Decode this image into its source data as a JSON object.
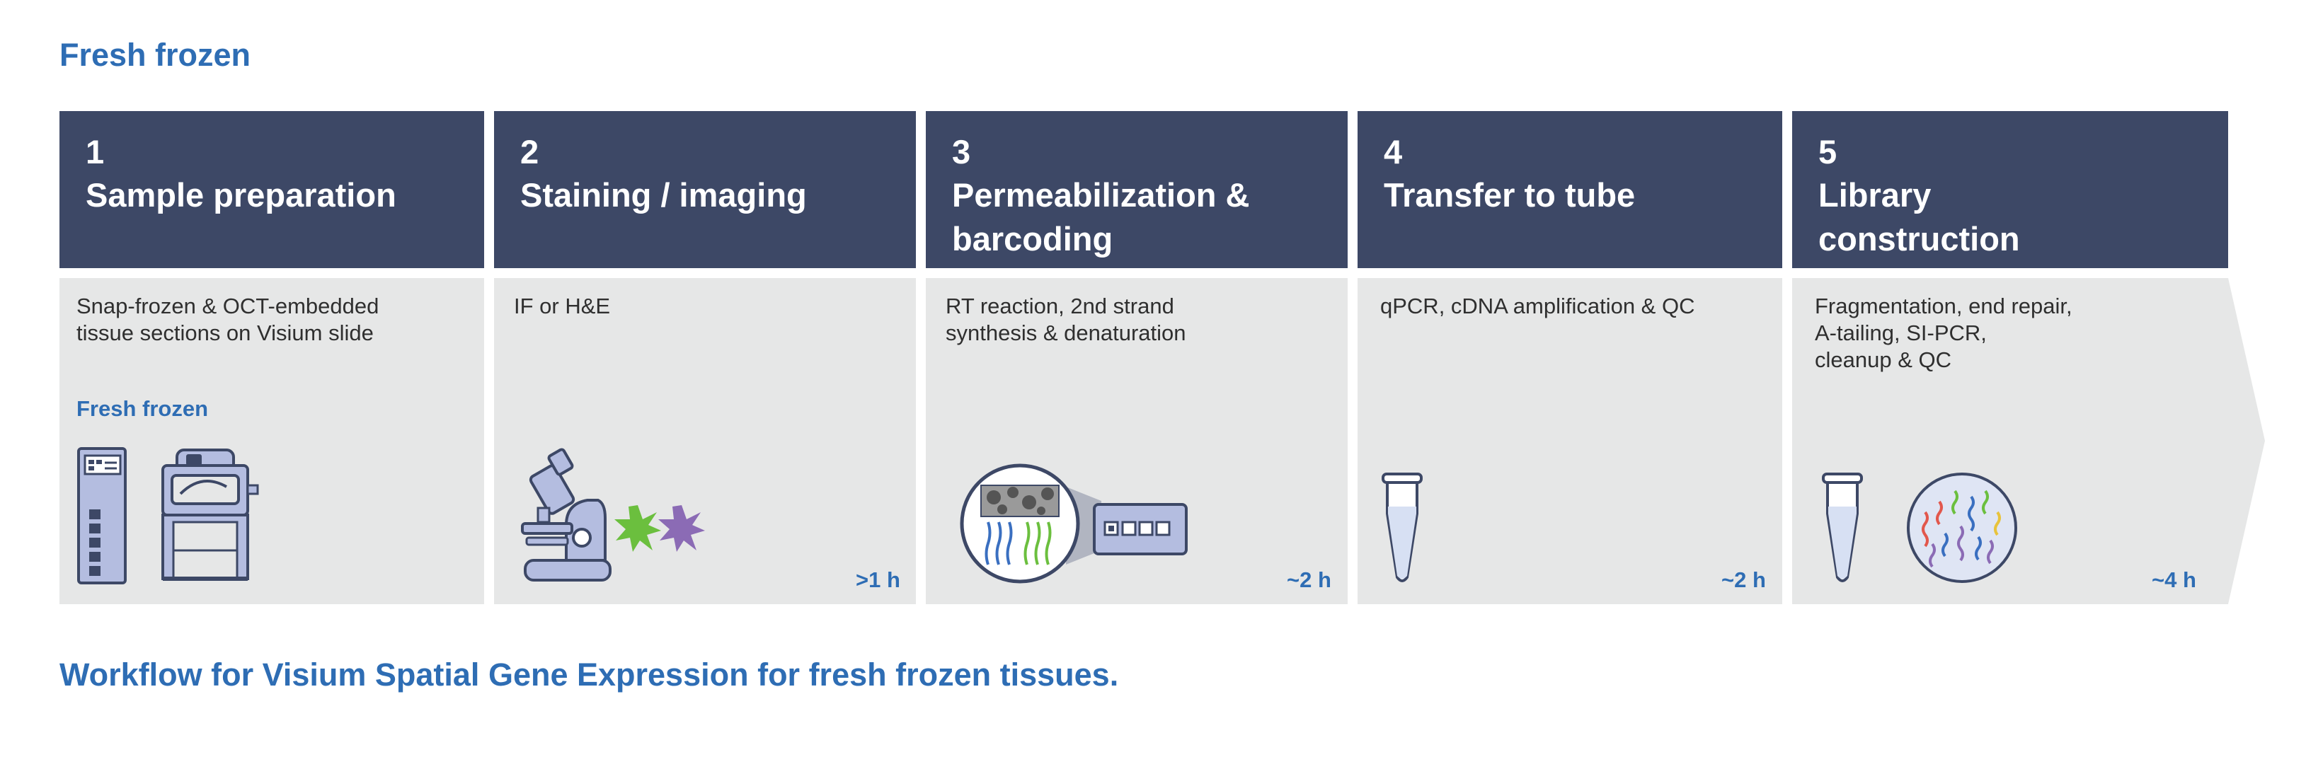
{
  "title": "Fresh frozen",
  "caption": "Workflow for Visium Spatial Gene Expression for fresh frozen tissues.",
  "steps": [
    {
      "number": "1",
      "title_lines": [
        "Sample preparation"
      ],
      "description_lines": [
        "Snap-frozen & OCT-embedded",
        "tissue sections on Visium slide"
      ],
      "sublabel": "Fresh frozen",
      "time": "",
      "icons": [
        "slide-icon",
        "cryostat-icon"
      ]
    },
    {
      "number": "2",
      "title_lines": [
        "Staining / imaging"
      ],
      "description_lines": [
        "IF or H&E"
      ],
      "time": ">1 h",
      "icons": [
        "microscope-icon",
        "green-stain-star-icon",
        "purple-stain-star-icon"
      ]
    },
    {
      "number": "3",
      "title_lines": [
        "Permeabilization &",
        "barcoding"
      ],
      "description_lines": [
        "RT reaction, 2nd strand",
        "synthesis & denaturation"
      ],
      "time": "~2 h",
      "icons": [
        "tissue-zoom-icon",
        "barcoded-slide-icon"
      ]
    },
    {
      "number": "4",
      "title_lines": [
        "Transfer to tube"
      ],
      "description_lines": [
        "qPCR, cDNA amplification & QC"
      ],
      "time": "~2 h",
      "icons": [
        "tube-icon"
      ]
    },
    {
      "number": "5",
      "title_lines": [
        "Library",
        "construction"
      ],
      "description_lines": [
        "Fragmentation, end repair,",
        "A-tailing, SI-PCR,",
        "cleanup & QC"
      ],
      "time": "~4 h",
      "icons": [
        "tube-icon",
        "library-dish-icon"
      ]
    }
  ],
  "colors": {
    "header": "#3d4866",
    "body": "#e6e7e7",
    "accent": "#2e6db4",
    "illustration_fill": "#b4bde0",
    "illustration_stroke": "#3d4866"
  }
}
